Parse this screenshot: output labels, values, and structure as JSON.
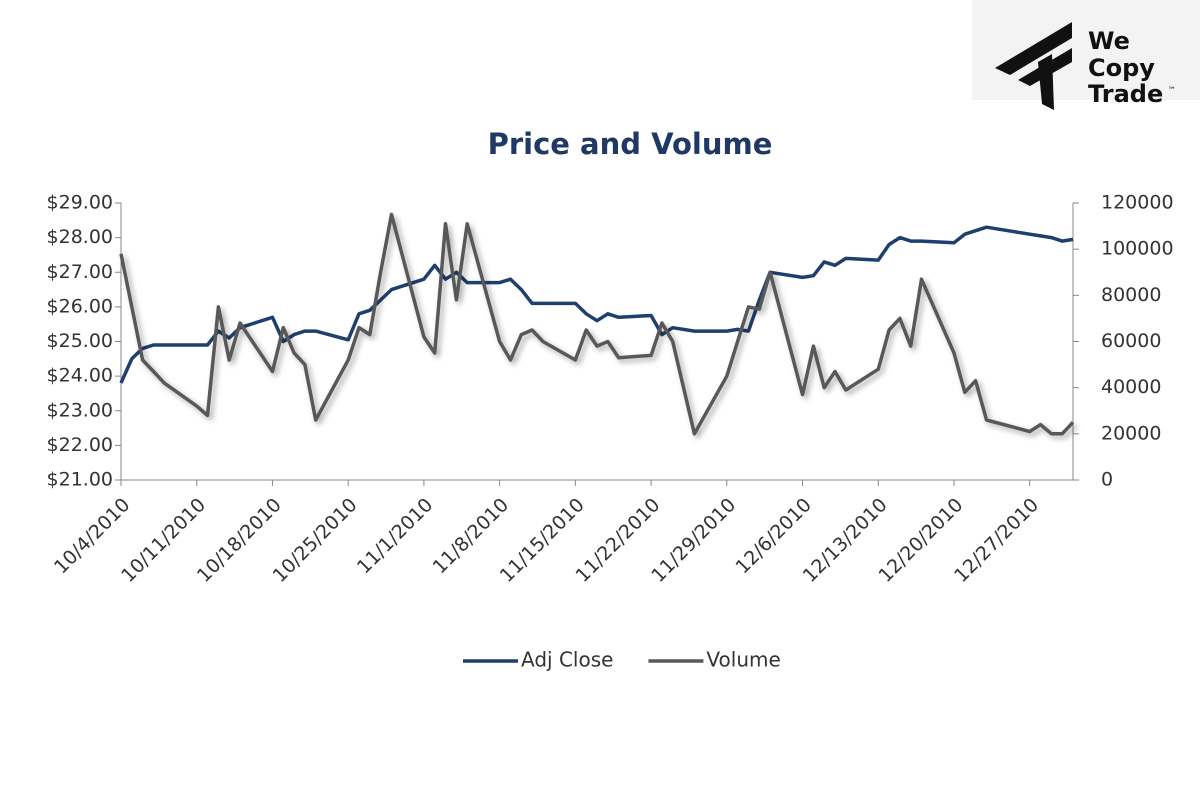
{
  "logo": {
    "lines": [
      "We",
      "Copy",
      "Trade"
    ],
    "mark": "™"
  },
  "chart_data": {
    "type": "line",
    "title": "Price and Volume",
    "x": [
      "10/4/2010",
      "10/5/2010",
      "10/6/2010",
      "10/7/2010",
      "10/8/2010",
      "10/11/2010",
      "10/12/2010",
      "10/13/2010",
      "10/14/2010",
      "10/15/2010",
      "10/18/2010",
      "10/19/2010",
      "10/20/2010",
      "10/21/2010",
      "10/22/2010",
      "10/25/2010",
      "10/26/2010",
      "10/27/2010",
      "10/28/2010",
      "10/29/2010",
      "11/1/2010",
      "11/2/2010",
      "11/3/2010",
      "11/4/2010",
      "11/5/2010",
      "11/8/2010",
      "11/9/2010",
      "11/10/2010",
      "11/11/2010",
      "11/12/2010",
      "11/15/2010",
      "11/16/2010",
      "11/17/2010",
      "11/18/2010",
      "11/19/2010",
      "11/22/2010",
      "11/23/2010",
      "11/24/2010",
      "11/26/2010",
      "11/29/2010",
      "11/30/2010",
      "12/1/2010",
      "12/2/2010",
      "12/3/2010",
      "12/6/2010",
      "12/7/2010",
      "12/8/2010",
      "12/9/2010",
      "12/10/2010",
      "12/13/2010",
      "12/14/2010",
      "12/15/2010",
      "12/16/2010",
      "12/17/2010",
      "12/20/2010",
      "12/21/2010",
      "12/22/2010",
      "12/23/2010",
      "12/27/2010",
      "12/28/2010",
      "12/29/2010",
      "12/30/2010",
      "12/31/2010"
    ],
    "series": [
      {
        "name": "Adj Close",
        "color": "#1f3f6e",
        "axis": "y",
        "values": [
          23.8,
          24.5,
          24.8,
          24.9,
          24.9,
          24.9,
          24.9,
          25.3,
          25.1,
          25.4,
          25.7,
          25.0,
          25.2,
          25.3,
          25.3,
          25.05,
          25.8,
          25.9,
          26.2,
          26.5,
          26.8,
          27.2,
          26.8,
          27.0,
          26.7,
          26.7,
          26.8,
          26.5,
          26.1,
          26.1,
          26.1,
          25.8,
          25.6,
          25.8,
          25.7,
          25.75,
          25.2,
          25.4,
          25.3,
          25.3,
          25.35,
          25.3,
          26.2,
          27.0,
          26.85,
          26.9,
          27.3,
          27.2,
          27.4,
          27.35,
          27.8,
          28.0,
          27.9,
          27.9,
          27.85,
          28.1,
          28.2,
          28.3,
          28.1,
          28.05,
          28.0,
          27.9,
          27.95
        ]
      },
      {
        "name": "Volume",
        "color": "#595959",
        "axis": "y2",
        "values": [
          98000,
          75000,
          52000,
          47000,
          42000,
          32000,
          28000,
          75000,
          52000,
          68000,
          47000,
          66000,
          55000,
          50000,
          26000,
          52000,
          66000,
          63000,
          90000,
          115000,
          62000,
          55000,
          111000,
          78000,
          111000,
          60000,
          52000,
          63000,
          65000,
          60000,
          52000,
          65000,
          58000,
          60000,
          53000,
          54000,
          68000,
          60000,
          20000,
          45000,
          60000,
          75000,
          74000,
          90000,
          37000,
          58000,
          40000,
          47000,
          39000,
          48000,
          65000,
          70000,
          58000,
          87000,
          55000,
          38000,
          43000,
          26000,
          21000,
          24000,
          20000,
          20000,
          25000
        ]
      }
    ],
    "ylim": [
      21,
      29
    ],
    "yticks": [
      {
        "value": 21,
        "label": "$21.00"
      },
      {
        "value": 22,
        "label": "$22.00"
      },
      {
        "value": 23,
        "label": "$23.00"
      },
      {
        "value": 24,
        "label": "$24.00"
      },
      {
        "value": 25,
        "label": "$25.00"
      },
      {
        "value": 26,
        "label": "$26.00"
      },
      {
        "value": 27,
        "label": "$27.00"
      },
      {
        "value": 28,
        "label": "$28.00"
      },
      {
        "value": 29,
        "label": "$29.00"
      }
    ],
    "y2lim": [
      0,
      120000
    ],
    "y2ticks": [
      0,
      20000,
      40000,
      60000,
      80000,
      100000,
      120000
    ],
    "xticks": [
      "10/4/2010",
      "10/11/2010",
      "10/18/2010",
      "10/25/2010",
      "11/1/2010",
      "11/8/2010",
      "11/15/2010",
      "11/22/2010",
      "11/29/2010",
      "12/6/2010",
      "12/13/2010",
      "12/20/2010",
      "12/27/2010"
    ],
    "legend": "bottom",
    "grid": false
  }
}
